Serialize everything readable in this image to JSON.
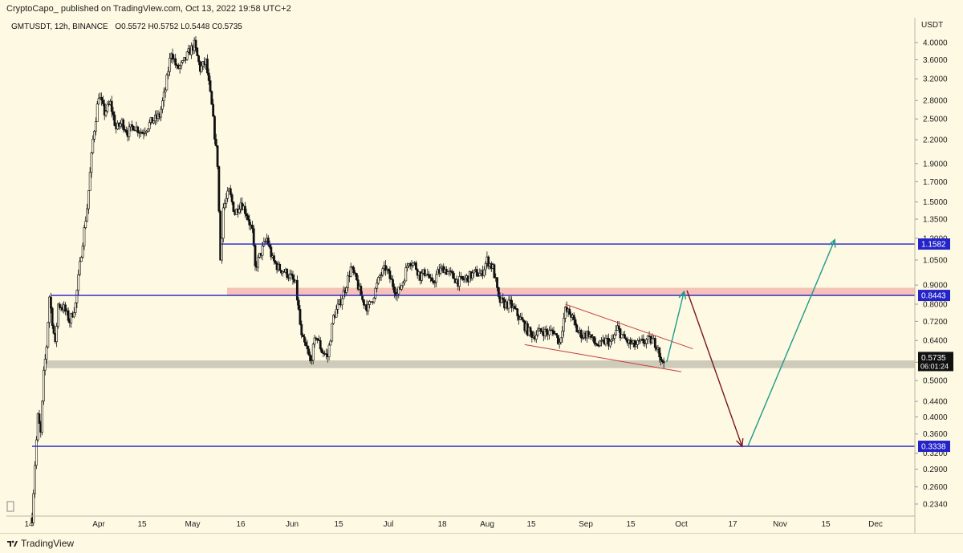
{
  "header": {
    "published_by": "CryptoCapo_ published on TradingView.com, Oct 13, 2022 19:58 UTC+2"
  },
  "footer": {
    "brand": "TradingView"
  },
  "symbol_info": {
    "symbol": "GMTUSDT, 12h, BINANCE",
    "ohlc": "O0.5572  H0.5752  L0.5448  C0.5735"
  },
  "chart_data": {
    "type": "candlestick",
    "symbol": "GMTUSDT",
    "interval": "12h",
    "exchange": "BINANCE",
    "currency": "USDT",
    "y_scale": "log",
    "ylim": [
      0.215,
      4.5
    ],
    "y_ticks": [
      "4.0000",
      "3.6000",
      "3.2000",
      "2.8000",
      "2.5000",
      "2.2000",
      "1.9000",
      "1.7000",
      "1.5000",
      "1.3500",
      "1.2000",
      "1.0500",
      "0.9000",
      "0.8000",
      "0.7200",
      "0.6400",
      "0.5600",
      "0.5000",
      "0.4400",
      "0.4000",
      "0.3600",
      "0.3200",
      "0.2900",
      "0.2600",
      "0.2340"
    ],
    "x_ticks": [
      "14",
      "Apr",
      "15",
      "May",
      "16",
      "Jun",
      "15",
      "Jul",
      "18",
      "Aug",
      "15",
      "Sep",
      "15",
      "Oct",
      "17",
      "Nov",
      "15",
      "Dec"
    ],
    "last": {
      "open": 0.5572,
      "high": 0.5752,
      "low": 0.5448,
      "close": 0.5735,
      "countdown": "06:01:24"
    },
    "price_path": [
      [
        "2022-03-09",
        0.215
      ],
      [
        "2022-03-10",
        0.3
      ],
      [
        "2022-03-11",
        0.4
      ],
      [
        "2022-03-12",
        0.36
      ],
      [
        "2022-03-13",
        0.52
      ],
      [
        "2022-03-14",
        0.62
      ],
      [
        "2022-03-15",
        0.84
      ],
      [
        "2022-03-16",
        0.72
      ],
      [
        "2022-03-17",
        0.62
      ],
      [
        "2022-03-18",
        0.8
      ],
      [
        "2022-03-20",
        0.78
      ],
      [
        "2022-03-22",
        0.72
      ],
      [
        "2022-03-24",
        0.8
      ],
      [
        "2022-03-26",
        1.1
      ],
      [
        "2022-03-28",
        1.45
      ],
      [
        "2022-03-30",
        2.2
      ],
      [
        "2022-04-01",
        2.9
      ],
      [
        "2022-04-03",
        2.6
      ],
      [
        "2022-04-05",
        2.75
      ],
      [
        "2022-04-07",
        2.35
      ],
      [
        "2022-04-09",
        2.45
      ],
      [
        "2022-04-11",
        2.3
      ],
      [
        "2022-04-13",
        2.4
      ],
      [
        "2022-04-16",
        2.3
      ],
      [
        "2022-04-19",
        2.45
      ],
      [
        "2022-04-22",
        2.55
      ],
      [
        "2022-04-24",
        3.0
      ],
      [
        "2022-04-26",
        3.8
      ],
      [
        "2022-04-28",
        3.4
      ],
      [
        "2022-04-30",
        3.5
      ],
      [
        "2022-05-02",
        3.75
      ],
      [
        "2022-05-04",
        3.95
      ],
      [
        "2022-05-06",
        3.4
      ],
      [
        "2022-05-08",
        3.55
      ],
      [
        "2022-05-10",
        2.7
      ],
      [
        "2022-05-12",
        1.9
      ],
      [
        "2022-05-13",
        1.05
      ],
      [
        "2022-05-14",
        1.45
      ],
      [
        "2022-05-16",
        1.6
      ],
      [
        "2022-05-18",
        1.4
      ],
      [
        "2022-05-20",
        1.5
      ],
      [
        "2022-05-22",
        1.4
      ],
      [
        "2022-05-24",
        1.25
      ],
      [
        "2022-05-25",
        1.0
      ],
      [
        "2022-05-27",
        1.1
      ],
      [
        "2022-05-29",
        1.2
      ],
      [
        "2022-05-31",
        1.05
      ],
      [
        "2022-06-02",
        1.0
      ],
      [
        "2022-06-04",
        0.98
      ],
      [
        "2022-06-06",
        0.95
      ],
      [
        "2022-06-08",
        0.9
      ],
      [
        "2022-06-10",
        0.65
      ],
      [
        "2022-06-12",
        0.6
      ],
      [
        "2022-06-13",
        0.56
      ],
      [
        "2022-06-15",
        0.66
      ],
      [
        "2022-06-17",
        0.6
      ],
      [
        "2022-06-19",
        0.58
      ],
      [
        "2022-06-21",
        0.74
      ],
      [
        "2022-06-23",
        0.8
      ],
      [
        "2022-06-25",
        0.88
      ],
      [
        "2022-06-27",
        1.0
      ],
      [
        "2022-06-29",
        0.92
      ],
      [
        "2022-07-01",
        0.82
      ],
      [
        "2022-07-03",
        0.78
      ],
      [
        "2022-07-05",
        0.85
      ],
      [
        "2022-07-07",
        0.95
      ],
      [
        "2022-07-09",
        1.0
      ],
      [
        "2022-07-11",
        0.92
      ],
      [
        "2022-07-13",
        0.85
      ],
      [
        "2022-07-15",
        0.92
      ],
      [
        "2022-07-17",
        1.05
      ],
      [
        "2022-07-19",
        1.02
      ],
      [
        "2022-07-21",
        0.95
      ],
      [
        "2022-07-23",
        0.98
      ],
      [
        "2022-07-25",
        0.9
      ],
      [
        "2022-07-27",
        0.97
      ],
      [
        "2022-07-29",
        1.0
      ],
      [
        "2022-08-01",
        0.95
      ],
      [
        "2022-08-03",
        0.92
      ],
      [
        "2022-08-05",
        0.93
      ],
      [
        "2022-08-07",
        0.95
      ],
      [
        "2022-08-09",
        0.97
      ],
      [
        "2022-08-11",
        0.96
      ],
      [
        "2022-08-13",
        1.05
      ],
      [
        "2022-08-15",
        1.0
      ],
      [
        "2022-08-16",
        0.92
      ],
      [
        "2022-08-17",
        0.82
      ],
      [
        "2022-08-19",
        0.8
      ],
      [
        "2022-08-21",
        0.8
      ],
      [
        "2022-08-23",
        0.76
      ],
      [
        "2022-08-25",
        0.72
      ],
      [
        "2022-08-27",
        0.68
      ],
      [
        "2022-08-29",
        0.66
      ],
      [
        "2022-09-01",
        0.68
      ],
      [
        "2022-09-03",
        0.67
      ],
      [
        "2022-09-05",
        0.68
      ],
      [
        "2022-09-07",
        0.63
      ],
      [
        "2022-09-09",
        0.77
      ],
      [
        "2022-09-11",
        0.75
      ],
      [
        "2022-09-13",
        0.68
      ],
      [
        "2022-09-15",
        0.66
      ],
      [
        "2022-09-17",
        0.67
      ],
      [
        "2022-09-19",
        0.63
      ],
      [
        "2022-09-21",
        0.62
      ],
      [
        "2022-09-23",
        0.64
      ],
      [
        "2022-09-25",
        0.63
      ],
      [
        "2022-09-27",
        0.69
      ],
      [
        "2022-09-29",
        0.65
      ],
      [
        "2022-10-01",
        0.63
      ],
      [
        "2022-10-03",
        0.62
      ],
      [
        "2022-10-05",
        0.63
      ],
      [
        "2022-10-07",
        0.64
      ],
      [
        "2022-10-09",
        0.64
      ],
      [
        "2022-10-11",
        0.62
      ],
      [
        "2022-10-12",
        0.5572
      ],
      [
        "2022-10-13",
        0.5735
      ]
    ],
    "horizontal_lines": [
      {
        "price": 1.1582,
        "label": "1.1582",
        "color": "#2323c8"
      },
      {
        "price": 0.8443,
        "label": "0.8443",
        "color": "#2323c8"
      },
      {
        "price": 0.3338,
        "label": "0.3338",
        "color": "#2323c8"
      }
    ],
    "zones": [
      {
        "low": 0.8443,
        "high": 0.885,
        "color": "#f4b8b0"
      },
      {
        "low": 0.54,
        "high": 0.566,
        "color": "#c7c3b3"
      }
    ],
    "wedge_lines": [
      {
        "from": [
          "2022-09-09",
          0.8
        ],
        "to": [
          "2022-10-23",
          0.608
        ],
        "color": "#c43c3c"
      },
      {
        "from": [
          "2022-08-26",
          0.624
        ],
        "to": [
          "2022-10-19",
          0.528
        ],
        "color": "#c43c3c"
      }
    ],
    "arrows": [
      {
        "from": [
          "2022-10-14",
          0.56
        ],
        "to": [
          "2022-10-20",
          0.865
        ],
        "color": "#1e9b8a"
      },
      {
        "from": [
          "2022-10-21",
          0.87
        ],
        "to": [
          "2022-11-09",
          0.3338
        ],
        "color": "#7a1422"
      },
      {
        "from": [
          "2022-11-11",
          0.3338
        ],
        "to": [
          "2022-12-11",
          1.19
        ],
        "color": "#1e9b8a"
      }
    ]
  }
}
